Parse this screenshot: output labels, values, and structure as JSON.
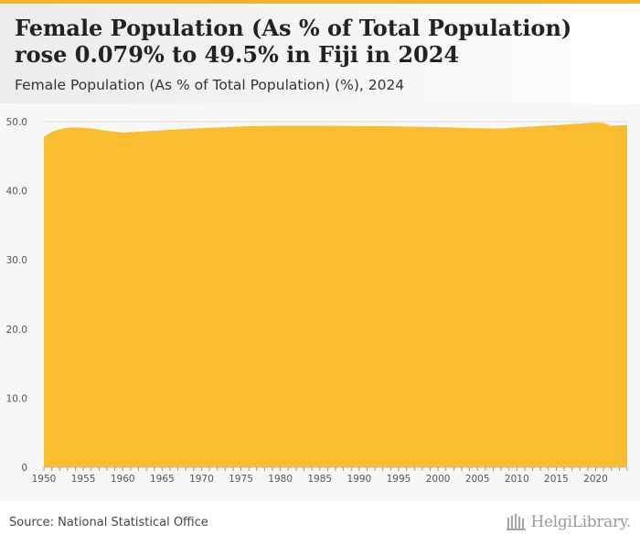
{
  "header": {
    "title": "Female Population (As % of Total Population) rose 0.079% to 49.5% in Fiji in 2024",
    "subtitle": "Female Population (As % of Total Population) (%), 2024"
  },
  "footer": {
    "source": "Source: National Statistical Office",
    "logo_text": "HelgiLibrary."
  },
  "colors": {
    "accent": "#f5b324",
    "area_fill": "#fbbd30",
    "gridline": "#dddddd",
    "tick_text": "#555555"
  },
  "chart_data": {
    "type": "area",
    "title": "Female Population (As % of Total Population) rose 0.079% to 49.5% in Fiji in 2024",
    "subtitle": "Female Population (As % of Total Population) (%), 2024",
    "xlabel": "",
    "ylabel": "",
    "xlim": [
      1950,
      2024
    ],
    "ylim": [
      0,
      50
    ],
    "grid": true,
    "legend": "none",
    "y_ticks": [
      {
        "value": 0,
        "label": "0"
      },
      {
        "value": 10,
        "label": "10.0"
      },
      {
        "value": 20,
        "label": "20.0"
      },
      {
        "value": 30,
        "label": "30.0"
      },
      {
        "value": 40,
        "label": "40.0"
      },
      {
        "value": 50,
        "label": "50.0"
      }
    ],
    "x_ticks": [
      {
        "value": 1950,
        "label": "1950"
      },
      {
        "value": 1955,
        "label": "1955"
      },
      {
        "value": 1960,
        "label": "1960"
      },
      {
        "value": 1965,
        "label": "1965"
      },
      {
        "value": 1970,
        "label": "1970"
      },
      {
        "value": 1975,
        "label": "1975"
      },
      {
        "value": 1980,
        "label": "1980"
      },
      {
        "value": 1985,
        "label": "1985"
      },
      {
        "value": 1990,
        "label": "1990"
      },
      {
        "value": 1995,
        "label": "1995"
      },
      {
        "value": 2000,
        "label": "2000"
      },
      {
        "value": 2005,
        "label": "2005"
      },
      {
        "value": 2010,
        "label": "2010"
      },
      {
        "value": 2015,
        "label": "2015"
      },
      {
        "value": 2020,
        "label": "2020"
      }
    ],
    "x": [
      1950,
      1951,
      1952,
      1953,
      1954,
      1955,
      1956,
      1957,
      1958,
      1959,
      1960,
      1962,
      1965,
      1970,
      1975,
      1980,
      1985,
      1990,
      1995,
      2000,
      2005,
      2008,
      2010,
      2015,
      2019,
      2020,
      2021,
      2022,
      2023,
      2024
    ],
    "values": [
      47.8,
      48.5,
      48.9,
      49.1,
      49.15,
      49.1,
      49.0,
      48.85,
      48.7,
      48.55,
      48.45,
      48.55,
      48.75,
      49.05,
      49.3,
      49.4,
      49.4,
      49.35,
      49.3,
      49.2,
      49.05,
      49.0,
      49.15,
      49.5,
      49.8,
      49.85,
      49.8,
      49.4,
      49.45,
      49.5
    ]
  }
}
